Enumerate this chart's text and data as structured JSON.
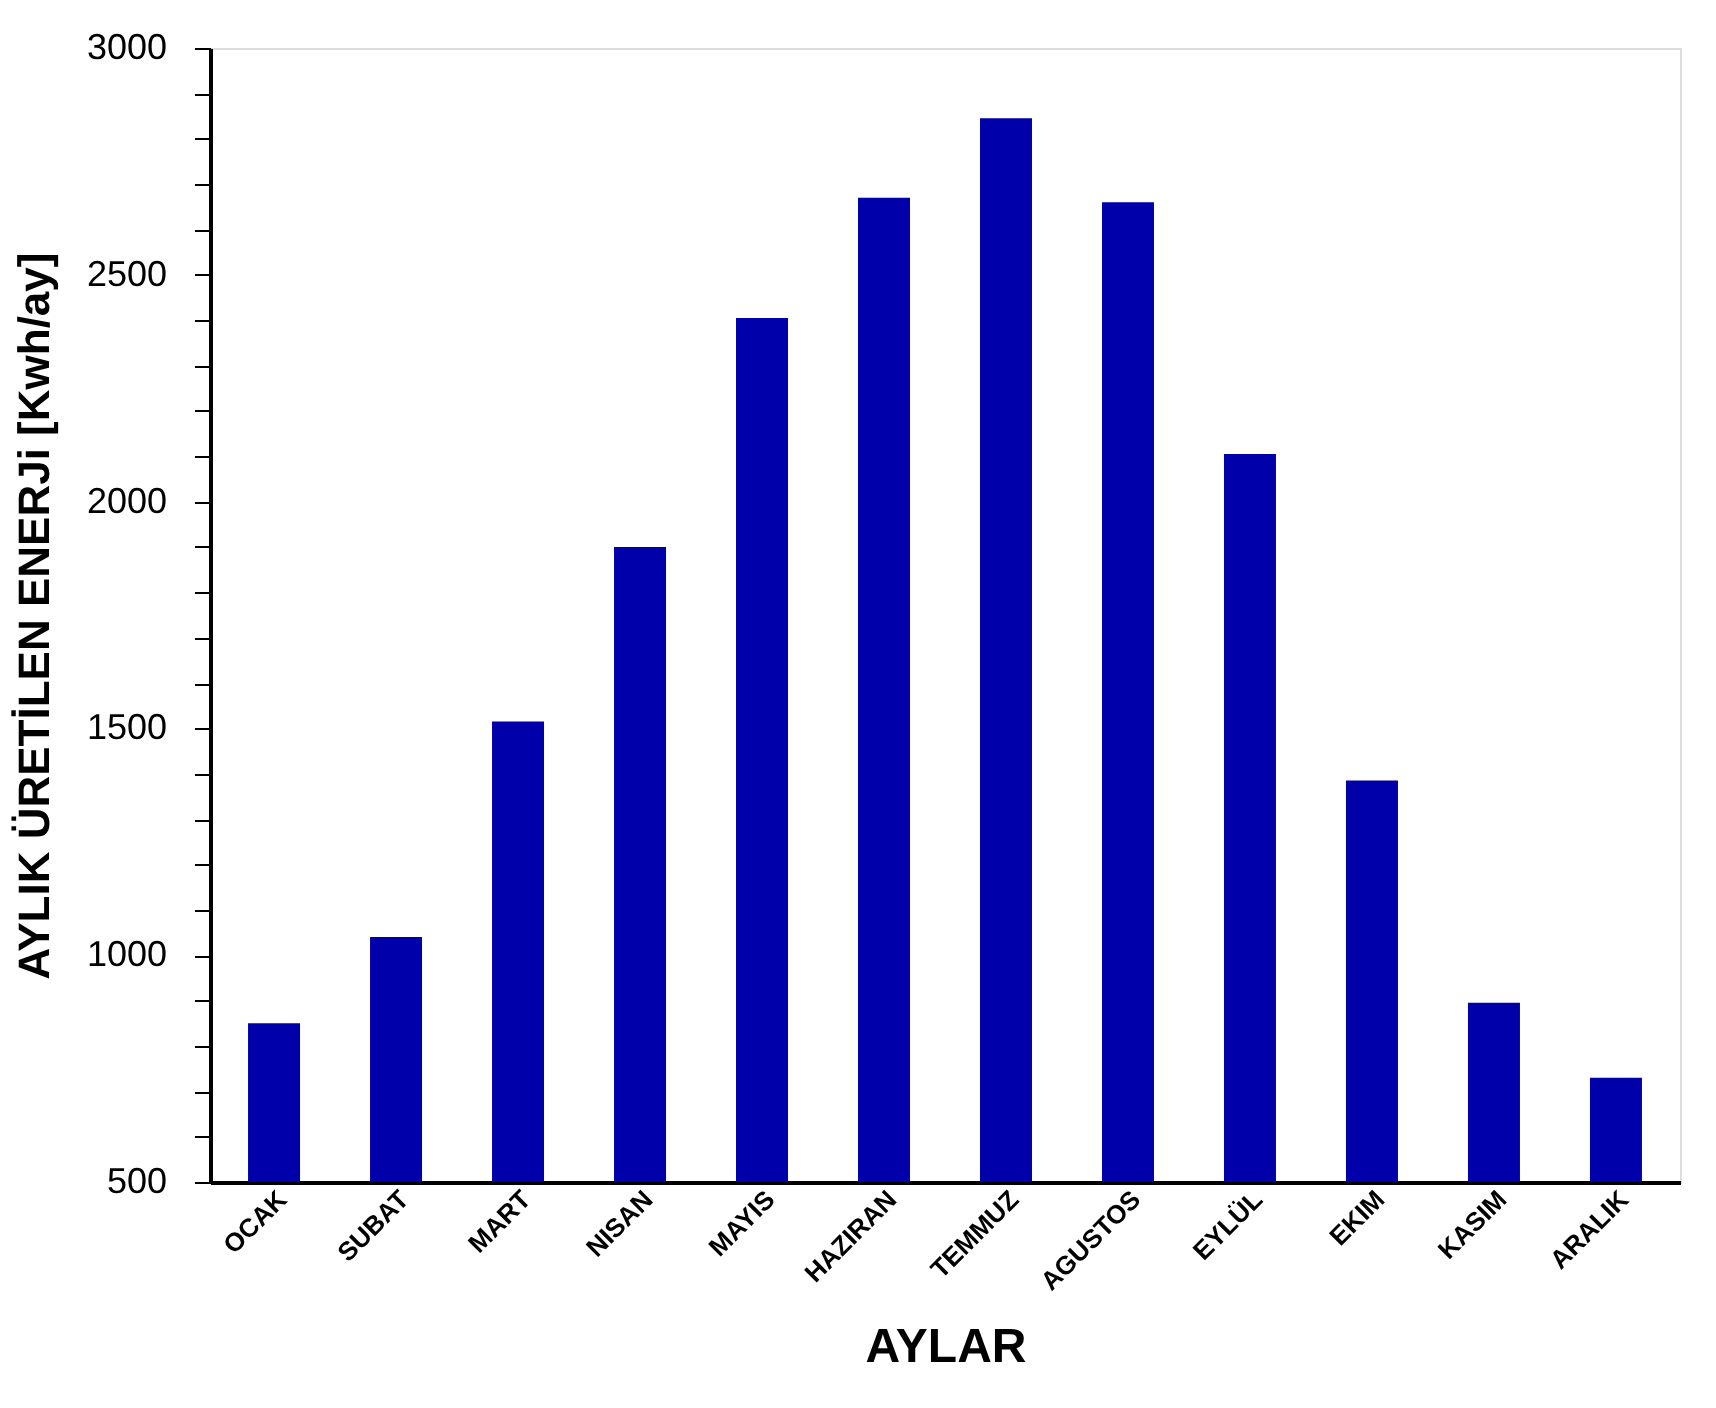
{
  "chart_data": {
    "type": "bar",
    "xlabel": "AYLAR",
    "ylabel": "AYLIK ÜRETİLEN ENERJi [Kwh/ay]",
    "categories": [
      "OCAK",
      "SUBAT",
      "MART",
      "NISAN",
      "MAYIS",
      "HAZIRAN",
      "TEMMUZ",
      "AGUSTOS",
      "EYLÜL",
      "EKIM",
      "KASIM",
      "ARALIK"
    ],
    "values": [
      850,
      1040,
      1515,
      1900,
      2405,
      2670,
      2845,
      2660,
      2105,
      1385,
      895,
      730
    ],
    "color": "#0000aa",
    "ylim": [
      500,
      3000
    ],
    "yticks": [
      500,
      {
        "value": 600,
        "label": null
      },
      {
        "value": 700,
        "label": null
      },
      {
        "value": 800,
        "label": null
      },
      {
        "value": 900,
        "label": null
      },
      1000,
      {
        "value": 1100,
        "label": null
      },
      {
        "value": 1200,
        "label": null
      },
      {
        "value": 1300,
        "label": null
      },
      {
        "value": 1400,
        "label": null
      },
      1500,
      {
        "value": 1600,
        "label": null
      },
      {
        "value": 1700,
        "label": null
      },
      {
        "value": 1800,
        "label": null
      },
      {
        "value": 1900,
        "label": null
      },
      2000,
      {
        "value": 2100,
        "label": null
      },
      {
        "value": 2200,
        "label": null
      },
      {
        "value": 2300,
        "label": null
      },
      {
        "value": 2400,
        "label": null
      },
      2500,
      {
        "value": 2600,
        "label": null
      },
      {
        "value": 2700,
        "label": null
      },
      {
        "value": 2800,
        "label": null
      },
      {
        "value": 2900,
        "label": null
      },
      3000
    ],
    "grid": false
  }
}
